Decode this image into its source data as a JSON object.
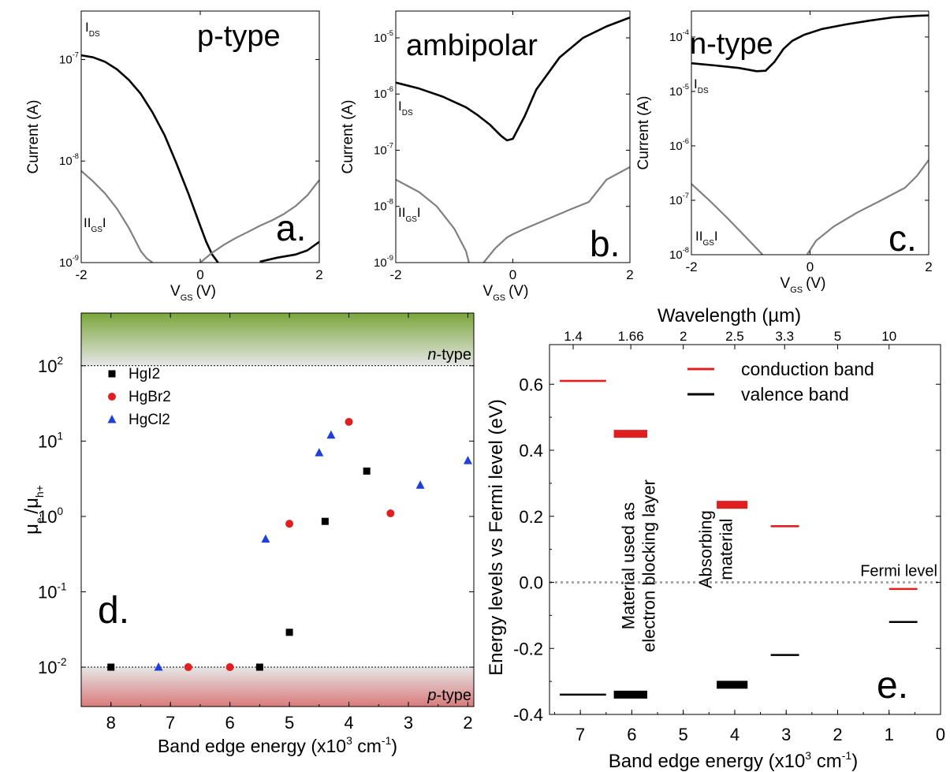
{
  "chart_data": [
    {
      "id": "a",
      "type": "line",
      "panel_letter": "a.",
      "title": "p-type",
      "xlabel_main": "V",
      "xlabel_sub": "GS",
      "xlabel_unit": "(V)",
      "ylabel": "Current (A)",
      "xlim": [
        -2,
        2
      ],
      "ylim": [
        1e-09,
        3e-07
      ],
      "yscale": "log",
      "xticks": [
        -2,
        0,
        2
      ],
      "yticks": [
        1e-09,
        1e-08,
        1e-07
      ],
      "ytick_labels": [
        [
          "10",
          "-9"
        ],
        [
          "10",
          "-8"
        ],
        [
          "10",
          "-7"
        ]
      ],
      "series": [
        {
          "name": "IDS",
          "label_main": "I",
          "label_sub": "DS",
          "color": "#000000",
          "x": [
            -2,
            -1.8,
            -1.6,
            -1.4,
            -1.2,
            -1.0,
            -0.8,
            -0.6,
            -0.4,
            -0.2,
            0.0,
            0.1,
            0.2,
            0.3
          ],
          "y": [
            1.1e-07,
            1.05e-07,
            9.5e-08,
            8e-08,
            6.3e-08,
            4.6e-08,
            3e-08,
            1.8e-08,
            9.5e-09,
            4.8e-09,
            2.3e-09,
            1.6e-09,
            1.2e-09,
            1e-09
          ]
        },
        {
          "name": "IDS-tail",
          "color": "#000000",
          "x": [
            1.0,
            1.3,
            1.6,
            1.8,
            2.0
          ],
          "y": [
            1.02e-09,
            1.12e-09,
            1.2e-09,
            1.32e-09,
            1.6e-09
          ]
        },
        {
          "name": "IGS",
          "label_main": "II",
          "label_sub": "GS",
          "label_end": "I",
          "color": "#808080",
          "x": [
            -2,
            -1.8,
            -1.6,
            -1.4,
            -1.2,
            -1.0,
            -0.9,
            -0.8
          ],
          "y": [
            8e-09,
            6.3e-09,
            4.8e-09,
            3.4e-09,
            2.2e-09,
            1.3e-09,
            1.1e-09,
            1e-09
          ]
        },
        {
          "name": "IGS-right",
          "color": "#808080",
          "x": [
            0,
            0.2,
            0.4,
            0.6,
            0.8,
            1.0,
            1.2,
            1.4,
            1.6,
            1.8,
            2.0
          ],
          "y": [
            1e-09,
            1.25e-09,
            1.5e-09,
            1.75e-09,
            2e-09,
            2.3e-09,
            2.6e-09,
            3e-09,
            3.6e-09,
            4.6e-09,
            6.5e-09
          ]
        }
      ]
    },
    {
      "id": "b",
      "type": "line",
      "panel_letter": "b.",
      "title": "ambipolar",
      "xlabel_main": "V",
      "xlabel_sub": "GS",
      "xlabel_unit": "(V)",
      "ylabel": "Current (A)",
      "xlim": [
        -2,
        2
      ],
      "ylim": [
        1e-09,
        3e-05
      ],
      "yscale": "log",
      "xticks": [
        -2,
        0,
        2
      ],
      "yticks": [
        1e-09,
        1e-08,
        1e-07,
        1e-06,
        1e-05
      ],
      "ytick_labels": [
        [
          "10",
          "-9"
        ],
        [
          "10",
          "-8"
        ],
        [
          "10",
          "-7"
        ],
        [
          "10",
          "-6"
        ],
        [
          "10",
          "-5"
        ]
      ],
      "series": [
        {
          "name": "IDS",
          "label_main": "I",
          "label_sub": "DS",
          "color": "#000000",
          "x": [
            -2,
            -1.6,
            -1.2,
            -0.8,
            -0.6,
            -0.4,
            -0.2,
            -0.1,
            0.0,
            0.2,
            0.4,
            0.8,
            1.2,
            1.6,
            2.0
          ],
          "y": [
            1.6e-06,
            1.25e-06,
            9e-07,
            5.8e-07,
            4.2e-07,
            2.9e-07,
            1.8e-07,
            1.5e-07,
            1.6e-07,
            4e-07,
            1.2e-06,
            4.5e-06,
            1e-05,
            1.6e-05,
            2.3e-05
          ]
        },
        {
          "name": "IGS",
          "label_main": "II",
          "label_sub": "GS",
          "label_end": "I",
          "color": "#808080",
          "x": [
            -2,
            -1.6,
            -1.3,
            -1.0,
            -0.8,
            -0.75
          ],
          "y": [
            3e-08,
            1.8e-08,
            1e-08,
            4e-09,
            1.6e-09,
            1e-09
          ]
        },
        {
          "name": "IGS-right",
          "color": "#808080",
          "x": [
            -0.5,
            -0.3,
            -0.1,
            0.0,
            0.2,
            0.6,
            1.0,
            1.3,
            1.6,
            2.0
          ],
          "y": [
            1e-09,
            1.8e-09,
            2.8e-09,
            3.2e-09,
            4e-09,
            6e-09,
            9e-09,
            1.2e-08,
            3e-08,
            5e-08
          ]
        }
      ]
    },
    {
      "id": "c",
      "type": "line",
      "panel_letter": "c.",
      "title": "n-type",
      "xlabel_main": "V",
      "xlabel_sub": "GS",
      "xlabel_unit": "(V)",
      "ylabel": "Current (A)",
      "xlim": [
        -2,
        2
      ],
      "ylim": [
        1e-08,
        0.0003
      ],
      "yscale": "log",
      "xticks": [
        -2,
        0,
        2
      ],
      "yticks": [
        1e-08,
        1e-07,
        1e-06,
        1e-05,
        0.0001
      ],
      "ytick_labels": [
        [
          "10",
          "-8"
        ],
        [
          "10",
          "-7"
        ],
        [
          "10",
          "-6"
        ],
        [
          "10",
          "-5"
        ],
        [
          "10",
          "-4"
        ]
      ],
      "series": [
        {
          "name": "IDS",
          "label_main": "I",
          "label_sub": "DS",
          "color": "#000000",
          "x": [
            -2,
            -1.6,
            -1.2,
            -0.9,
            -0.75,
            -0.6,
            -0.45,
            -0.3,
            -0.1,
            0.2,
            0.6,
            1.0,
            1.4,
            1.8,
            2.0
          ],
          "y": [
            3.3e-05,
            3e-05,
            2.7e-05,
            2.35e-05,
            2.4e-05,
            3.5e-05,
            6e-05,
            8.5e-05,
            0.00011,
            0.00014,
            0.00017,
            0.0002,
            0.00023,
            0.000245,
            0.00025
          ]
        },
        {
          "name": "IGS",
          "label_main": "II",
          "label_sub": "GS",
          "label_end": "I",
          "color": "#808080",
          "x": [
            -2,
            -1.7,
            -1.4,
            -1.1,
            -0.9,
            -0.8
          ],
          "y": [
            2e-07,
            1e-07,
            4.8e-08,
            2.2e-08,
            1.3e-08,
            1e-08
          ]
        },
        {
          "name": "IGS-right",
          "color": "#808080",
          "x": [
            -0.05,
            0.1,
            0.4,
            0.8,
            1.2,
            1.6,
            1.8,
            2.0
          ],
          "y": [
            1e-08,
            1.8e-08,
            3.3e-08,
            6e-08,
            1e-07,
            1.7e-07,
            2.8e-07,
            5.5e-07
          ]
        }
      ]
    },
    {
      "id": "d",
      "type": "scatter",
      "panel_letter": "d.",
      "xlabel": "Band edge energy (x10",
      "xlabel_sup": "3",
      "xlabel_unit": " cm",
      "xlabel_unit_sup": "-1",
      "xlabel_close": ")",
      "ylabel_mu": "μ",
      "ylabel_e": "e-",
      "ylabel_slash": "/μ",
      "ylabel_h": "h+",
      "xlim": [
        8.5,
        1.9
      ],
      "ylim": [
        0.003,
        500
      ],
      "yscale": "log",
      "xticks": [
        8,
        7,
        6,
        5,
        4,
        3,
        2
      ],
      "yticks": [
        0.01,
        0.1,
        1,
        10,
        100
      ],
      "ytick_labels": [
        [
          "10",
          "-2"
        ],
        [
          "10",
          "-1"
        ],
        [
          "10",
          "0"
        ],
        [
          "10",
          "1"
        ],
        [
          "10",
          "2"
        ]
      ],
      "regions": [
        {
          "label": "n-type",
          "italic": "n",
          "suffix": "-type",
          "y_from": 100,
          "y_to": 500,
          "color": "#7aa63a"
        },
        {
          "label": "p-type",
          "italic": "p",
          "suffix": "-type",
          "y_from": 0.003,
          "y_to": 0.01,
          "color": "#d97b7b"
        }
      ],
      "series": [
        {
          "name": "HgI2",
          "marker": "square",
          "color": "#000000",
          "x": [
            8.0,
            5.5,
            5.0,
            4.4,
            3.7
          ],
          "y": [
            0.01,
            0.01,
            0.029,
            0.86,
            4.0
          ]
        },
        {
          "name": "HgBr2",
          "marker": "circle",
          "color": "#e02020",
          "x": [
            6.7,
            6.0,
            5.0,
            4.0,
            3.3
          ],
          "y": [
            0.01,
            0.01,
            0.8,
            18,
            1.1
          ]
        },
        {
          "name": "HgCl2",
          "marker": "triangle",
          "color": "#1f3fd8",
          "x": [
            7.2,
            5.4,
            4.5,
            4.3,
            2.8,
            2.0
          ],
          "y": [
            0.01,
            0.5,
            7,
            12,
            2.6,
            5.5
          ]
        }
      ]
    },
    {
      "id": "e",
      "type": "bar",
      "panel_letter": "e.",
      "xlabel": "Band edge energy (x10",
      "xlabel_sup": "3",
      "xlabel_unit": " cm",
      "xlabel_unit_sup": "-1",
      "xlabel_close": ")",
      "ylabel": "Energy levels vs Fermi level (eV)",
      "top_xlabel": "Wavelength (µm)",
      "top_ticks": [
        {
          "label": "1.4",
          "x": 7.14
        },
        {
          "label": "1.66",
          "x": 6.02
        },
        {
          "label": "2",
          "x": 5.0
        },
        {
          "label": "2.5",
          "x": 4.0
        },
        {
          "label": "3.3",
          "x": 3.03
        },
        {
          "label": "5",
          "x": 2.0
        },
        {
          "label": "10",
          "x": 1.0
        }
      ],
      "xlim": [
        7.6,
        0
      ],
      "ylim": [
        -0.4,
        0.72
      ],
      "xticks": [
        7,
        6,
        5,
        4,
        3,
        2,
        1,
        0
      ],
      "yticks": [
        -0.4,
        -0.2,
        0.0,
        0.2,
        0.4,
        0.6
      ],
      "ytick_labels": [
        "-0.4",
        "-0.2",
        "0.0",
        "0.2",
        "0.4",
        "0.6"
      ],
      "fermi_label": "Fermi level",
      "legend": [
        {
          "name": "conduction band",
          "color": "#e02020"
        },
        {
          "name": "valence band",
          "color": "#000000"
        }
      ],
      "annotations": [
        {
          "lines": [
            "Material used as",
            "electron blocking layer"
          ],
          "x": 5.95,
          "y": 0.05
        },
        {
          "lines": [
            "Absorbing",
            "material"
          ],
          "x": 4.45,
          "y": 0.1
        }
      ],
      "levels": [
        {
          "band": "conduction",
          "x_from": 7.4,
          "x_to": 6.5,
          "y": 0.61,
          "thick": false
        },
        {
          "band": "valence",
          "x_from": 7.4,
          "x_to": 6.5,
          "y": -0.34,
          "thick": false
        },
        {
          "band": "conduction",
          "x_from": 6.35,
          "x_to": 5.7,
          "y": 0.45,
          "thick": true
        },
        {
          "band": "valence",
          "x_from": 6.35,
          "x_to": 5.7,
          "y": -0.34,
          "thick": true
        },
        {
          "band": "conduction",
          "x_from": 4.35,
          "x_to": 3.75,
          "y": 0.235,
          "thick": true
        },
        {
          "band": "valence",
          "x_from": 4.35,
          "x_to": 3.75,
          "y": -0.31,
          "thick": true
        },
        {
          "band": "conduction",
          "x_from": 3.3,
          "x_to": 2.75,
          "y": 0.17,
          "thick": false
        },
        {
          "band": "valence",
          "x_from": 3.3,
          "x_to": 2.75,
          "y": -0.22,
          "thick": false
        },
        {
          "band": "conduction",
          "x_from": 1.0,
          "x_to": 0.45,
          "y": -0.02,
          "thick": false
        },
        {
          "band": "valence",
          "x_from": 1.0,
          "x_to": 0.45,
          "y": -0.12,
          "thick": false
        }
      ]
    }
  ]
}
